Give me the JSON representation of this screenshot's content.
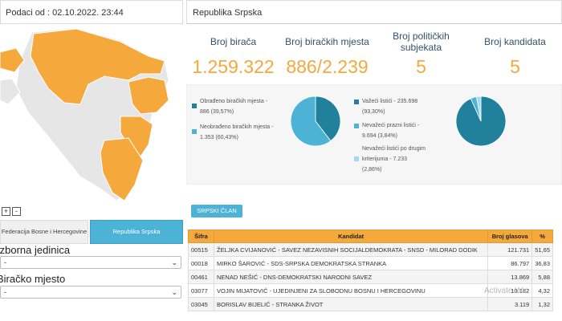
{
  "left": {
    "header": "Podaci od : 02.10.2022. 23:44",
    "zoom_in": "+",
    "zoom_out": "-",
    "tabs": [
      {
        "label": "Federacija Bosne i Hercegovine",
        "active": false
      },
      {
        "label": "Republika Srpska",
        "active": true
      }
    ],
    "field1_label": "Izborna jedinica",
    "field1_value": "-",
    "field2_label": "Biračko mjesto",
    "field2_value": "-"
  },
  "right": {
    "header": "Republika Srpska",
    "stats": [
      {
        "label": "Broj birača",
        "value": "1.259.322"
      },
      {
        "label": "Broj biračkih mjesta",
        "value": "886/2.239"
      },
      {
        "label": "Broj političkih subjekata",
        "value": "5"
      },
      {
        "label": "Broj kandidata",
        "value": "5"
      }
    ],
    "chart1": {
      "legend": [
        {
          "line1": "Obrađeno biračkih mjesta -",
          "line2": "886 (39,57%)",
          "color": "#21809b"
        },
        {
          "line1": "Neobrađeno biračkih mjesta -",
          "line2": "1.353 (60,43%)",
          "color": "#4cb3d6"
        }
      ],
      "slices": [
        39.57,
        60.43
      ]
    },
    "chart2": {
      "legend": [
        {
          "line1": "Važeći listići - 235.698",
          "line2": "(93,30%)",
          "color": "#21809b"
        },
        {
          "line1": "Nevažeći prazni listići -",
          "line2": "9.694 (3,84%)",
          "color": "#4cb3d6"
        },
        {
          "line1": "Nevažeći listići po drugim",
          "line2": "kriterijuma - 7.233",
          "line3": "(2,86%)",
          "color": "#9fdcef"
        }
      ],
      "slices": [
        93.3,
        3.84,
        2.86
      ]
    },
    "clan_button": "SRPSKI ČLAN",
    "table": {
      "headers": [
        "Šifra",
        "Kandidat",
        "Broj glasova",
        "%"
      ],
      "rows": [
        [
          "00515",
          "ŽELJKA CVIJANOVIĆ - SAVEZ NEZAVISNIH SOCIJALDEMOKRATA - SNSD - MILORAD DODIK",
          "121.731",
          "51,65"
        ],
        [
          "00018",
          "MIRKO ŠAROVIĆ - SDS-SRPSKA DEMOKRATSKA STRANKA",
          "86.797",
          "36,83"
        ],
        [
          "00461",
          "NENAD NEŠIĆ - DNS-DEMOKRATSKI NARODNI SAVEZ",
          "13.869",
          "5,88"
        ],
        [
          "03077",
          "VOJIN MIJATOVIĆ - UJEDINJENI ZA SLOBODNU BOSNU I HERCEGOVINU",
          "10.182",
          "4,32"
        ],
        [
          "03045",
          "BORISLAV BIJELIĆ - STRANKA ŽIVOT",
          "3.119",
          "1,32"
        ]
      ]
    },
    "watermark": "Activate Win"
  },
  "colors": {
    "accent": "#f5a83c",
    "blue": "#4cb3d6",
    "dark_teal": "#21809b",
    "map_fill": "#f5a83c",
    "map_other": "#e6e6e6"
  }
}
